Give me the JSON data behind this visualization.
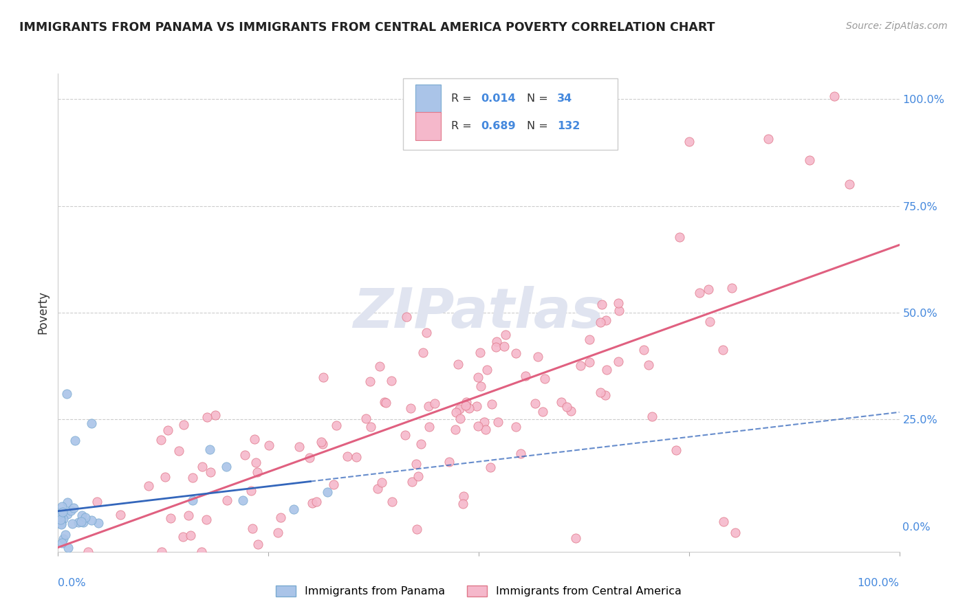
{
  "title": "IMMIGRANTS FROM PANAMA VS IMMIGRANTS FROM CENTRAL AMERICA POVERTY CORRELATION CHART",
  "source": "Source: ZipAtlas.com",
  "ylabel": "Poverty",
  "panama_color": "#aac4e8",
  "panama_edge_color": "#7aaad0",
  "central_color": "#f5b8cb",
  "central_edge_color": "#e0788a",
  "panama_line_color": "#3366bb",
  "central_line_color": "#e06080",
  "watermark_text": "ZIPatlas",
  "watermark_color": "#e0e4f0",
  "background_color": "#ffffff",
  "grid_color": "#cccccc",
  "R_panama": 0.014,
  "N_panama": 34,
  "R_central": 0.689,
  "N_central": 132,
  "label_color": "#4488dd",
  "text_color": "#333333",
  "source_color": "#999999"
}
